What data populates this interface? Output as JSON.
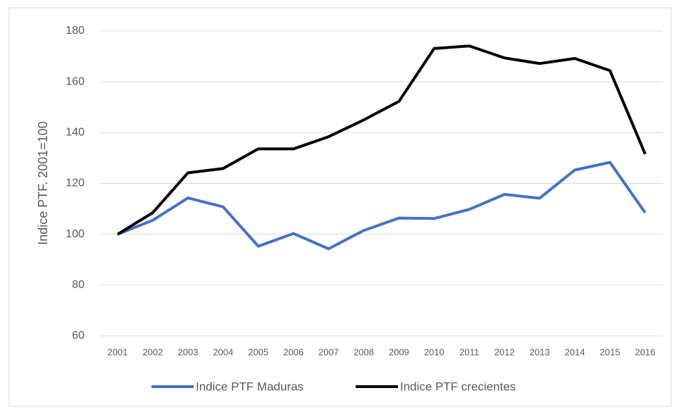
{
  "chart_data": {
    "type": "line",
    "y_label": "Indice PTF. 2001=100",
    "categories": [
      "2001",
      "2002",
      "2003",
      "2004",
      "2005",
      "2006",
      "2007",
      "2008",
      "2009",
      "2010",
      "2011",
      "2012",
      "2013",
      "2014",
      "2015",
      "2016"
    ],
    "series": [
      {
        "name": "Indice PTF Maduras",
        "color": "#4472c4",
        "values": [
          100,
          105.5,
          114.3,
          110.8,
          95.3,
          100.3,
          94.3,
          101.5,
          106.4,
          106.2,
          109.8,
          115.7,
          114.2,
          125.3,
          128.3,
          108.5
        ]
      },
      {
        "name": "Indice PTF crecientes",
        "color": "#000000",
        "values": [
          100,
          108.5,
          124.2,
          125.9,
          133.6,
          133.6,
          138.4,
          145,
          152.3,
          173.1,
          174.1,
          169.4,
          167.2,
          169.2,
          164.4,
          131.6
        ]
      }
    ],
    "ylim": [
      60,
      180
    ],
    "yticks": [
      60,
      80,
      100,
      120,
      140,
      160,
      180
    ],
    "grid": true,
    "legend": "bottom"
  }
}
